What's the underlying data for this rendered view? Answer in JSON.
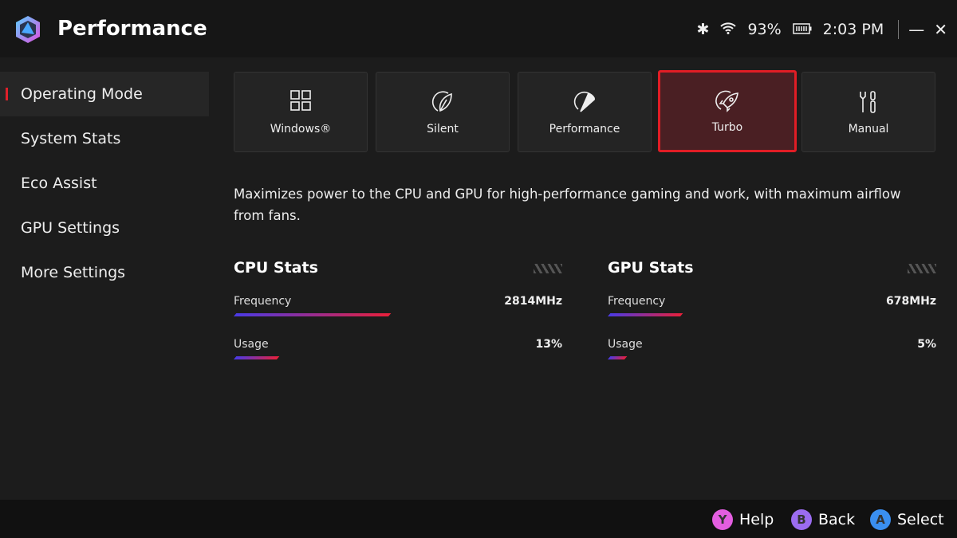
{
  "header": {
    "title": "Performance",
    "battery": "93%",
    "time": "2:03 PM"
  },
  "sidebar": {
    "items": [
      {
        "label": "Operating Mode",
        "active": true
      },
      {
        "label": "System Stats"
      },
      {
        "label": "Eco Assist"
      },
      {
        "label": "GPU Settings"
      },
      {
        "label": "More Settings"
      }
    ]
  },
  "modes": [
    {
      "label": "Windows®",
      "icon": "grid-icon"
    },
    {
      "label": "Silent",
      "icon": "leaf-gauge-icon"
    },
    {
      "label": "Performance",
      "icon": "gauge-icon"
    },
    {
      "label": "Turbo",
      "icon": "rocket-icon",
      "selected": true
    },
    {
      "label": "Manual",
      "icon": "tools-icon"
    }
  ],
  "description": "Maximizes power to the CPU and GPU for high-performance gaming and work, with maximum airflow from fans.",
  "cpu": {
    "title": "CPU Stats",
    "frequency_label": "Frequency",
    "frequency": "2814MHz",
    "frequency_fill": 0.47,
    "usage_label": "Usage",
    "usage": "13%",
    "usage_fill": 0.13
  },
  "gpu": {
    "title": "GPU Stats",
    "frequency_label": "Frequency",
    "frequency": "678MHz",
    "frequency_fill": 0.22,
    "usage_label": "Usage",
    "usage": "5%",
    "usage_fill": 0.05
  },
  "footer": {
    "help": {
      "key": "Y",
      "label": "Help",
      "color": "#e35ee0"
    },
    "back": {
      "key": "B",
      "label": "Back",
      "color": "#9b6cf0"
    },
    "select": {
      "key": "A",
      "label": "Select",
      "color": "#3a8ff0"
    }
  }
}
